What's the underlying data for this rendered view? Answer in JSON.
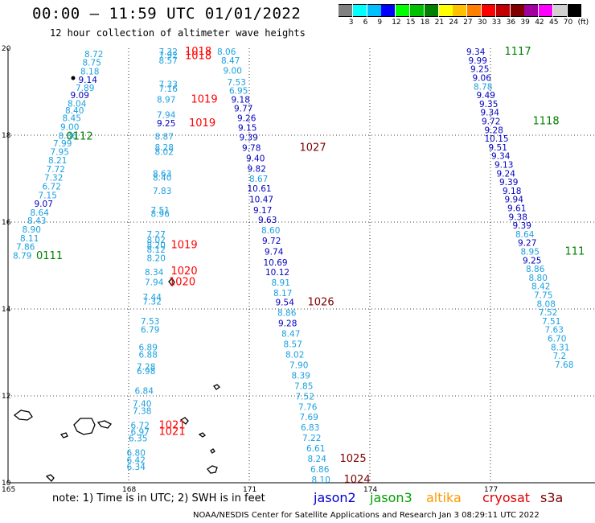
{
  "title": "00:00 – 11:59 UTC 01/01/2022",
  "subtitle": "12 hour collection of altimeter wave heights",
  "colorbar": {
    "labels": [
      "3",
      "6",
      "9",
      "12",
      "15",
      "18",
      "21",
      "24",
      "27",
      "30",
      "33",
      "36",
      "39",
      "42",
      "45",
      "70",
      "(ft)"
    ],
    "colors": [
      "#808080",
      "#00ffff",
      "#00bfff",
      "#0000ff",
      "#00ff00",
      "#00c000",
      "#008000",
      "#ffff00",
      "#ffc000",
      "#ff8000",
      "#ff0000",
      "#c00000",
      "#800000",
      "#a000a0",
      "#ff00ff",
      "#d0d0d0",
      "#000000"
    ]
  },
  "axes": {
    "y_ticks": [
      "20",
      "18",
      "16",
      "14",
      "12",
      "10"
    ],
    "x_ticks": [
      "165",
      "168",
      "171",
      "174",
      "177"
    ]
  },
  "footer": {
    "note": "note: 1) Time is in UTC; 2) SWH is in feet",
    "satellites": [
      {
        "name": "jason2",
        "color": "#0000d0"
      },
      {
        "name": "jason3",
        "color": "#00a000"
      },
      {
        "name": "altika",
        "color": "#ff9900"
      },
      {
        "name": "cryosat",
        "color": "#e00000"
      },
      {
        "name": "s3a",
        "color": "#800000"
      }
    ],
    "credit": "NOAA/NESDIS Center for Satellite Applications and Research   Jan  3 08:29:11 UTC 2022"
  },
  "map_points": [
    {
      "t": "8.72",
      "lon": 166.9,
      "lat": 19.8,
      "c": "#1aa0e0"
    },
    {
      "t": "8.75",
      "lon": 166.85,
      "lat": 19.6,
      "c": "#1aa0e0"
    },
    {
      "t": "8.18",
      "lon": 166.8,
      "lat": 19.4,
      "c": "#1aa0e0"
    },
    {
      "t": "9.14",
      "lon": 166.75,
      "lat": 19.2,
      "c": "#0000c0"
    },
    {
      "t": "7.89",
      "lon": 166.68,
      "lat": 19.02,
      "c": "#1aa0e0"
    },
    {
      "t": "9.09",
      "lon": 166.55,
      "lat": 18.85,
      "c": "#0000c0"
    },
    {
      "t": "8.04",
      "lon": 166.48,
      "lat": 18.66,
      "c": "#1aa0e0"
    },
    {
      "t": "8.40",
      "lon": 166.42,
      "lat": 18.5,
      "c": "#1aa0e0"
    },
    {
      "t": "8.45",
      "lon": 166.35,
      "lat": 18.32,
      "c": "#1aa0e0"
    },
    {
      "t": "9.00",
      "lon": 166.3,
      "lat": 18.12,
      "c": "#1aa0e0"
    },
    {
      "t": "8.36",
      "lon": 166.25,
      "lat": 17.92,
      "c": "#1aa0e0"
    },
    {
      "t": "7.99",
      "lon": 166.12,
      "lat": 17.74,
      "c": "#1aa0e0"
    },
    {
      "t": "7.95",
      "lon": 166.05,
      "lat": 17.55,
      "c": "#1aa0e0"
    },
    {
      "t": "8.21",
      "lon": 166.0,
      "lat": 17.35,
      "c": "#1aa0e0"
    },
    {
      "t": "7.72",
      "lon": 165.95,
      "lat": 17.15,
      "c": "#1aa0e0"
    },
    {
      "t": "7.32",
      "lon": 165.9,
      "lat": 16.95,
      "c": "#1aa0e0"
    },
    {
      "t": "6.72",
      "lon": 165.85,
      "lat": 16.75,
      "c": "#1aa0e0"
    },
    {
      "t": "7.15",
      "lon": 165.75,
      "lat": 16.55,
      "c": "#1aa0e0"
    },
    {
      "t": "9.07",
      "lon": 165.65,
      "lat": 16.35,
      "c": "#0000c0"
    },
    {
      "t": "8.64",
      "lon": 165.55,
      "lat": 16.15,
      "c": "#1aa0e0"
    },
    {
      "t": "8.43",
      "lon": 165.48,
      "lat": 15.96,
      "c": "#1aa0e0"
    },
    {
      "t": "8.90",
      "lon": 165.35,
      "lat": 15.76,
      "c": "#1aa0e0"
    },
    {
      "t": "8.11",
      "lon": 165.3,
      "lat": 15.56,
      "c": "#1aa0e0"
    },
    {
      "t": "7.86",
      "lon": 165.2,
      "lat": 15.36,
      "c": "#1aa0e0"
    },
    {
      "t": "8.79",
      "lon": 165.12,
      "lat": 15.16,
      "c": "#1aa0e0"
    },
    {
      "t": "7.32",
      "lon": 168.75,
      "lat": 19.85,
      "c": "#1aa0e0"
    },
    {
      "t": "7.92",
      "lon": 168.75,
      "lat": 19.77,
      "c": "#1aa0e0"
    },
    {
      "t": "8.57",
      "lon": 168.75,
      "lat": 19.65,
      "c": "#1aa0e0"
    },
    {
      "t": "7.33",
      "lon": 168.75,
      "lat": 19.1,
      "c": "#1aa0e0"
    },
    {
      "t": "7.16",
      "lon": 168.75,
      "lat": 19.0,
      "c": "#1aa0e0"
    },
    {
      "t": "8.97",
      "lon": 168.7,
      "lat": 18.75,
      "c": "#1aa0e0"
    },
    {
      "t": "7.94",
      "lon": 168.7,
      "lat": 18.4,
      "c": "#1aa0e0"
    },
    {
      "t": "9.25",
      "lon": 168.7,
      "lat": 18.2,
      "c": "#0000c0"
    },
    {
      "t": "8.87",
      "lon": 168.65,
      "lat": 17.9,
      "c": "#1aa0e0"
    },
    {
      "t": "8.28",
      "lon": 168.65,
      "lat": 17.65,
      "c": "#1aa0e0"
    },
    {
      "t": "8.02",
      "lon": 168.65,
      "lat": 17.55,
      "c": "#1aa0e0"
    },
    {
      "t": "8.63",
      "lon": 168.6,
      "lat": 17.05,
      "c": "#1aa0e0"
    },
    {
      "t": "8.40",
      "lon": 168.6,
      "lat": 16.95,
      "c": "#1aa0e0"
    },
    {
      "t": "7.83",
      "lon": 168.6,
      "lat": 16.65,
      "c": "#1aa0e0"
    },
    {
      "t": "7.51",
      "lon": 168.55,
      "lat": 16.2,
      "c": "#1aa0e0"
    },
    {
      "t": "8.96",
      "lon": 168.55,
      "lat": 16.12,
      "c": "#1aa0e0"
    },
    {
      "t": "7.27",
      "lon": 168.45,
      "lat": 15.65,
      "c": "#1aa0e0"
    },
    {
      "t": "8.02",
      "lon": 168.45,
      "lat": 15.52,
      "c": "#1aa0e0"
    },
    {
      "t": "8.20",
      "lon": 168.45,
      "lat": 15.4,
      "c": "#1aa0e0"
    },
    {
      "t": "8.12",
      "lon": 168.45,
      "lat": 15.3,
      "c": "#1aa0e0"
    },
    {
      "t": "8.20",
      "lon": 168.45,
      "lat": 15.1,
      "c": "#1aa0e0"
    },
    {
      "t": "8.34",
      "lon": 168.4,
      "lat": 14.78,
      "c": "#1aa0e0"
    },
    {
      "t": "7.94",
      "lon": 168.4,
      "lat": 14.55,
      "c": "#1aa0e0"
    },
    {
      "t": "7.44",
      "lon": 168.35,
      "lat": 14.2,
      "c": "#1aa0e0"
    },
    {
      "t": "7.32",
      "lon": 168.35,
      "lat": 14.1,
      "c": "#1aa0e0"
    },
    {
      "t": "7.53",
      "lon": 168.3,
      "lat": 13.65,
      "c": "#1aa0e0"
    },
    {
      "t": "6.79",
      "lon": 168.3,
      "lat": 13.45,
      "c": "#1aa0e0"
    },
    {
      "t": "6.89",
      "lon": 168.25,
      "lat": 13.05,
      "c": "#1aa0e0"
    },
    {
      "t": "6.88",
      "lon": 168.25,
      "lat": 12.88,
      "c": "#1aa0e0"
    },
    {
      "t": "7.28",
      "lon": 168.2,
      "lat": 12.6,
      "c": "#1aa0e0"
    },
    {
      "t": "6.98",
      "lon": 168.2,
      "lat": 12.5,
      "c": "#1aa0e0"
    },
    {
      "t": "6.84",
      "lon": 168.15,
      "lat": 12.05,
      "c": "#1aa0e0"
    },
    {
      "t": "7.40",
      "lon": 168.1,
      "lat": 11.75,
      "c": "#1aa0e0"
    },
    {
      "t": "7.38",
      "lon": 168.1,
      "lat": 11.58,
      "c": "#1aa0e0"
    },
    {
      "t": "6.72",
      "lon": 168.05,
      "lat": 11.25,
      "c": "#1aa0e0"
    },
    {
      "t": "6.97",
      "lon": 168.05,
      "lat": 11.1,
      "c": "#1aa0e0"
    },
    {
      "t": "6.35",
      "lon": 168.0,
      "lat": 10.95,
      "c": "#1aa0e0"
    },
    {
      "t": "6.80",
      "lon": 167.95,
      "lat": 10.62,
      "c": "#1aa0e0"
    },
    {
      "t": "6.42",
      "lon": 167.95,
      "lat": 10.45,
      "c": "#1aa0e0"
    },
    {
      "t": "6.34",
      "lon": 167.95,
      "lat": 10.3,
      "c": "#1aa0e0"
    },
    {
      "t": "8.06",
      "lon": 170.2,
      "lat": 19.85,
      "c": "#1aa0e0"
    },
    {
      "t": "8.47",
      "lon": 170.3,
      "lat": 19.65,
      "c": "#1aa0e0"
    },
    {
      "t": "9.00",
      "lon": 170.35,
      "lat": 19.42,
      "c": "#1aa0e0"
    },
    {
      "t": "7.53",
      "lon": 170.45,
      "lat": 19.15,
      "c": "#1aa0e0"
    },
    {
      "t": "6.95",
      "lon": 170.5,
      "lat": 18.95,
      "c": "#1aa0e0"
    },
    {
      "t": "9.18",
      "lon": 170.55,
      "lat": 18.75,
      "c": "#0000c0"
    },
    {
      "t": "9.77",
      "lon": 170.62,
      "lat": 18.55,
      "c": "#0000c0"
    },
    {
      "t": "9.26",
      "lon": 170.7,
      "lat": 18.32,
      "c": "#0000c0"
    },
    {
      "t": "9.15",
      "lon": 170.72,
      "lat": 18.1,
      "c": "#0000c0"
    },
    {
      "t": "9.39",
      "lon": 170.75,
      "lat": 17.88,
      "c": "#0000c0"
    },
    {
      "t": "9.78",
      "lon": 170.82,
      "lat": 17.64,
      "c": "#0000c0"
    },
    {
      "t": "9.40",
      "lon": 170.92,
      "lat": 17.4,
      "c": "#0000c0"
    },
    {
      "t": "9.82",
      "lon": 170.95,
      "lat": 17.16,
      "c": "#0000c0"
    },
    {
      "t": "8.67",
      "lon": 171.0,
      "lat": 16.93,
      "c": "#1aa0e0"
    },
    {
      "t": "10.61",
      "lon": 170.95,
      "lat": 16.7,
      "c": "#0000c0"
    },
    {
      "t": "10.47",
      "lon": 171.0,
      "lat": 16.45,
      "c": "#0000c0"
    },
    {
      "t": "9.17",
      "lon": 171.1,
      "lat": 16.2,
      "c": "#0000c0"
    },
    {
      "t": "9.63",
      "lon": 171.22,
      "lat": 15.98,
      "c": "#0000c0"
    },
    {
      "t": "8.60",
      "lon": 171.3,
      "lat": 15.74,
      "c": "#1aa0e0"
    },
    {
      "t": "9.72",
      "lon": 171.32,
      "lat": 15.5,
      "c": "#0000c0"
    },
    {
      "t": "9.74",
      "lon": 171.38,
      "lat": 15.25,
      "c": "#0000c0"
    },
    {
      "t": "10.69",
      "lon": 171.35,
      "lat": 15.0,
      "c": "#0000c0"
    },
    {
      "t": "10.12",
      "lon": 171.4,
      "lat": 14.78,
      "c": "#0000c0"
    },
    {
      "t": "8.91",
      "lon": 171.55,
      "lat": 14.54,
      "c": "#1aa0e0"
    },
    {
      "t": "8.17",
      "lon": 171.6,
      "lat": 14.3,
      "c": "#1aa0e0"
    },
    {
      "t": "9.54",
      "lon": 171.65,
      "lat": 14.08,
      "c": "#0000c0"
    },
    {
      "t": "8.86",
      "lon": 171.7,
      "lat": 13.84,
      "c": "#1aa0e0"
    },
    {
      "t": "9.28",
      "lon": 171.72,
      "lat": 13.6,
      "c": "#0000c0"
    },
    {
      "t": "8.47",
      "lon": 171.8,
      "lat": 13.36,
      "c": "#1aa0e0"
    },
    {
      "t": "8.57",
      "lon": 171.85,
      "lat": 13.12,
      "c": "#1aa0e0"
    },
    {
      "t": "8.02",
      "lon": 171.9,
      "lat": 12.88,
      "c": "#1aa0e0"
    },
    {
      "t": "7.90",
      "lon": 172.0,
      "lat": 12.64,
      "c": "#1aa0e0"
    },
    {
      "t": "8.39",
      "lon": 172.05,
      "lat": 12.4,
      "c": "#1aa0e0"
    },
    {
      "t": "7.85",
      "lon": 172.12,
      "lat": 12.16,
      "c": "#1aa0e0"
    },
    {
      "t": "7.52",
      "lon": 172.15,
      "lat": 11.92,
      "c": "#1aa0e0"
    },
    {
      "t": "7.76",
      "lon": 172.22,
      "lat": 11.68,
      "c": "#1aa0e0"
    },
    {
      "t": "7.69",
      "lon": 172.25,
      "lat": 11.44,
      "c": "#1aa0e0"
    },
    {
      "t": "6.83",
      "lon": 172.28,
      "lat": 11.2,
      "c": "#1aa0e0"
    },
    {
      "t": "7.22",
      "lon": 172.32,
      "lat": 10.96,
      "c": "#1aa0e0"
    },
    {
      "t": "6.61",
      "lon": 172.42,
      "lat": 10.72,
      "c": "#1aa0e0"
    },
    {
      "t": "8.24",
      "lon": 172.45,
      "lat": 10.48,
      "c": "#1aa0e0"
    },
    {
      "t": "6.86",
      "lon": 172.52,
      "lat": 10.24,
      "c": "#1aa0e0"
    },
    {
      "t": "8.10",
      "lon": 172.55,
      "lat": 10.0,
      "c": "#1aa0e0"
    },
    {
      "t": "9.34",
      "lon": 176.4,
      "lat": 19.85,
      "c": "#0000c0"
    },
    {
      "t": "9.99",
      "lon": 176.45,
      "lat": 19.65,
      "c": "#0000c0"
    },
    {
      "t": "9.25",
      "lon": 176.5,
      "lat": 19.45,
      "c": "#0000c0"
    },
    {
      "t": "9.06",
      "lon": 176.55,
      "lat": 19.25,
      "c": "#0000c0"
    },
    {
      "t": "8.78",
      "lon": 176.58,
      "lat": 19.05,
      "c": "#1aa0e0"
    },
    {
      "t": "9.49",
      "lon": 176.65,
      "lat": 18.85,
      "c": "#0000c0"
    },
    {
      "t": "9.35",
      "lon": 176.72,
      "lat": 18.65,
      "c": "#0000c0"
    },
    {
      "t": "9.34",
      "lon": 176.75,
      "lat": 18.45,
      "c": "#0000c0"
    },
    {
      "t": "9.72",
      "lon": 176.78,
      "lat": 18.25,
      "c": "#0000c0"
    },
    {
      "t": "9.28",
      "lon": 176.85,
      "lat": 18.05,
      "c": "#0000c0"
    },
    {
      "t": "10.15",
      "lon": 176.85,
      "lat": 17.85,
      "c": "#0000c0"
    },
    {
      "t": "9.51",
      "lon": 176.95,
      "lat": 17.65,
      "c": "#0000c0"
    },
    {
      "t": "9.34",
      "lon": 177.02,
      "lat": 17.45,
      "c": "#0000c0"
    },
    {
      "t": "9.13",
      "lon": 177.1,
      "lat": 17.25,
      "c": "#0000c0"
    },
    {
      "t": "9.24",
      "lon": 177.15,
      "lat": 17.05,
      "c": "#0000c0"
    },
    {
      "t": "9.39",
      "lon": 177.22,
      "lat": 16.85,
      "c": "#0000c0"
    },
    {
      "t": "9.18",
      "lon": 177.3,
      "lat": 16.65,
      "c": "#0000c0"
    },
    {
      "t": "9.94",
      "lon": 177.35,
      "lat": 16.45,
      "c": "#0000c0"
    },
    {
      "t": "9.61",
      "lon": 177.42,
      "lat": 16.25,
      "c": "#0000c0"
    },
    {
      "t": "9.38",
      "lon": 177.45,
      "lat": 16.05,
      "c": "#0000c0"
    },
    {
      "t": "9.39",
      "lon": 177.55,
      "lat": 15.85,
      "c": "#0000c0"
    },
    {
      "t": "8.64",
      "lon": 177.62,
      "lat": 15.65,
      "c": "#1aa0e0"
    },
    {
      "t": "9.27",
      "lon": 177.68,
      "lat": 15.45,
      "c": "#0000c0"
    },
    {
      "t": "8.95",
      "lon": 177.75,
      "lat": 15.25,
      "c": "#1aa0e0"
    },
    {
      "t": "9.25",
      "lon": 177.8,
      "lat": 15.05,
      "c": "#0000c0"
    },
    {
      "t": "8.86",
      "lon": 177.88,
      "lat": 14.85,
      "c": "#1aa0e0"
    },
    {
      "t": "8.80",
      "lon": 177.95,
      "lat": 14.65,
      "c": "#1aa0e0"
    },
    {
      "t": "8.42",
      "lon": 178.02,
      "lat": 14.45,
      "c": "#1aa0e0"
    },
    {
      "t": "7.75",
      "lon": 178.08,
      "lat": 14.25,
      "c": "#1aa0e0"
    },
    {
      "t": "8.08",
      "lon": 178.15,
      "lat": 14.05,
      "c": "#1aa0e0"
    },
    {
      "t": "7.52",
      "lon": 178.2,
      "lat": 13.85,
      "c": "#1aa0e0"
    },
    {
      "t": "7.51",
      "lon": 178.28,
      "lat": 13.65,
      "c": "#1aa0e0"
    },
    {
      "t": "7.63",
      "lon": 178.35,
      "lat": 13.45,
      "c": "#1aa0e0"
    },
    {
      "t": "6.70",
      "lon": 178.42,
      "lat": 13.25,
      "c": "#1aa0e0"
    },
    {
      "t": "8.31",
      "lon": 178.5,
      "lat": 13.05,
      "c": "#1aa0e0"
    },
    {
      "t": "7.2",
      "lon": 178.55,
      "lat": 12.85,
      "c": "#1aa0e0"
    },
    {
      "t": "7.68",
      "lon": 178.6,
      "lat": 12.65,
      "c": "#1aa0e0"
    }
  ],
  "pass_ids": [
    {
      "t": "0112",
      "lon": 166.45,
      "lat": 17.9,
      "c": "#008000"
    },
    {
      "t": "0111",
      "lon": 165.7,
      "lat": 15.15,
      "c": "#008000"
    },
    {
      "t": "1018",
      "lon": 169.4,
      "lat": 19.85,
      "c": "#ff0000"
    },
    {
      "t": "1018",
      "lon": 169.4,
      "lat": 19.75,
      "c": "#ff0000"
    },
    {
      "t": "1019",
      "lon": 169.55,
      "lat": 18.75,
      "c": "#ff0000"
    },
    {
      "t": "1019",
      "lon": 169.5,
      "lat": 18.2,
      "c": "#ff0000"
    },
    {
      "t": "1019",
      "lon": 169.05,
      "lat": 15.4,
      "c": "#ff0000"
    },
    {
      "t": "1020",
      "lon": 169.05,
      "lat": 14.8,
      "c": "#ff0000"
    },
    {
      "t": "1020",
      "lon": 169.0,
      "lat": 14.55,
      "c": "#ff0000"
    },
    {
      "t": "1021",
      "lon": 168.75,
      "lat": 11.25,
      "c": "#ff0000"
    },
    {
      "t": "1021",
      "lon": 168.75,
      "lat": 11.1,
      "c": "#ff0000"
    },
    {
      "t": "1027",
      "lon": 172.25,
      "lat": 17.64,
      "c": "#800000"
    },
    {
      "t": "1026",
      "lon": 172.45,
      "lat": 14.08,
      "c": "#800000"
    },
    {
      "t": "1025",
      "lon": 173.25,
      "lat": 10.48,
      "c": "#800000"
    },
    {
      "t": "1024",
      "lon": 173.35,
      "lat": 10.0,
      "c": "#800000"
    },
    {
      "t": "1117",
      "lon": 177.35,
      "lat": 19.85,
      "c": "#008000"
    },
    {
      "t": "1118",
      "lon": 178.05,
      "lat": 18.25,
      "c": "#008000"
    },
    {
      "t": "111",
      "lon": 178.85,
      "lat": 15.25,
      "c": "#008000"
    }
  ]
}
